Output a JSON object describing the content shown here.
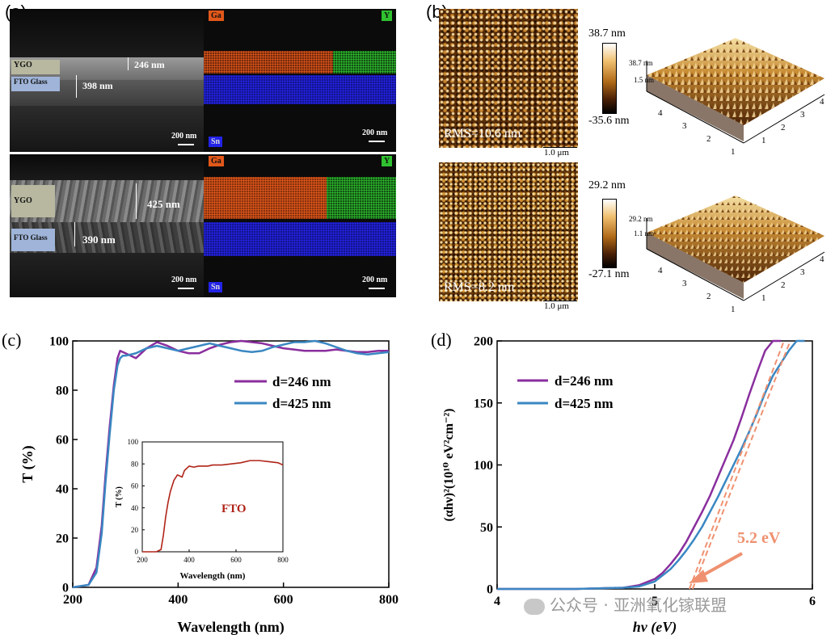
{
  "panel_a": {
    "label": "(a)",
    "top": {
      "ygo_label": "YGO",
      "fto_label": "FTO Glass",
      "ygo_thickness": "246 nm",
      "fto_thickness": "398 nm",
      "scale_sem": "200 nm",
      "scale_eds": "200 nm",
      "eds_ga": "Ga",
      "eds_y": "Y",
      "eds_sn": "Sn"
    },
    "bottom": {
      "ygo_label": "YGO",
      "fto_label": "FTO Glass",
      "ygo_thickness": "425 nm",
      "fto_thickness": "390 nm",
      "scale_sem": "200 nm",
      "scale_eds": "200 nm",
      "eds_ga": "Ga",
      "eds_y": "Y",
      "eds_sn": "Sn"
    },
    "colors": {
      "ga": "#e2581a",
      "y": "#2fc12f",
      "sn": "#2323e8",
      "ygo_tag": "#b8b8a0",
      "fto_tag": "#9fb4d8"
    }
  },
  "panel_b": {
    "label": "(b)",
    "top": {
      "rms": "RMS=10.6 nm",
      "scale": "1.0 μm",
      "cbar_max": "38.7 nm",
      "cbar_min": "-35.6 nm",
      "z_max": "38.7 nm",
      "z_mid": "1.5 nm",
      "x_ticks": [
        "1",
        "2",
        "3",
        "4"
      ],
      "y_ticks": [
        "1",
        "2",
        "3",
        "4"
      ]
    },
    "bottom": {
      "rms": "RMS=8.2 nm",
      "scale": "1.0 μm",
      "cbar_max": "29.2 nm",
      "cbar_min": "-27.1 nm",
      "z_max": "29.2 nm",
      "z_mid": "1.1 nm",
      "x_ticks": [
        "1",
        "2",
        "3",
        "4"
      ],
      "y_ticks": [
        "1",
        "2",
        "3",
        "4"
      ]
    }
  },
  "watermark": "公众号 · 亚洲氧化镓联盟",
  "chart_data": [
    {
      "id": "c",
      "type": "line",
      "panel_label": "(c)",
      "xlabel": "Wavelength (nm)",
      "ylabel": "T (%)",
      "xlim": [
        200,
        800
      ],
      "ylim": [
        0,
        100
      ],
      "x_ticks": [
        200,
        400,
        600,
        800
      ],
      "y_ticks": [
        0,
        20,
        40,
        60,
        80,
        100
      ],
      "legend_position": "right",
      "series": [
        {
          "name": "d=246 nm",
          "color": "#8a2e9e",
          "x": [
            200,
            230,
            245,
            255,
            262,
            270,
            278,
            285,
            290,
            300,
            320,
            340,
            360,
            380,
            400,
            420,
            440,
            460,
            480,
            500,
            520,
            540,
            560,
            580,
            600,
            620,
            640,
            660,
            680,
            700,
            720,
            740,
            760,
            780,
            800
          ],
          "y": [
            0,
            1,
            8,
            25,
            45,
            65,
            82,
            93,
            96,
            95,
            93,
            97,
            99.5,
            98,
            96,
            95,
            95,
            97,
            98.5,
            99.5,
            100,
            99.5,
            99,
            98,
            97,
            96.5,
            96,
            96,
            96,
            96.5,
            96,
            95.5,
            95.5,
            96,
            96
          ]
        },
        {
          "name": "d=425 nm",
          "color": "#3a87c2",
          "x": [
            200,
            230,
            245,
            255,
            262,
            270,
            278,
            285,
            290,
            295,
            300,
            320,
            340,
            360,
            380,
            400,
            420,
            440,
            460,
            480,
            500,
            520,
            540,
            560,
            580,
            600,
            620,
            640,
            660,
            680,
            700,
            720,
            740,
            760,
            780,
            800
          ],
          "y": [
            0,
            1,
            6,
            22,
            42,
            62,
            80,
            90,
            93,
            94,
            94,
            95,
            97,
            98,
            97,
            96,
            97,
            98,
            99,
            98,
            97,
            96,
            95.5,
            96,
            97.5,
            98.5,
            99.5,
            99.5,
            100,
            99,
            97.5,
            96,
            95,
            94.5,
            95,
            95.5
          ]
        }
      ],
      "inset": {
        "type": "line",
        "xlabel": "Wavelength (nm)",
        "ylabel": "T (%)",
        "xlim": [
          200,
          800
        ],
        "ylim": [
          0,
          100
        ],
        "x_ticks": [
          200,
          400,
          600,
          800
        ],
        "y_ticks": [
          0,
          20,
          40,
          60,
          80,
          100
        ],
        "annotation": "FTO",
        "series": [
          {
            "name": "FTO",
            "color": "#b02418",
            "x": [
              200,
              260,
              280,
              290,
              300,
              310,
              320,
              335,
              350,
              370,
              380,
              400,
              420,
              440,
              460,
              480,
              500,
              540,
              580,
              620,
              660,
              700,
              740,
              780,
              800
            ],
            "y": [
              0,
              0,
              2,
              15,
              32,
              45,
              55,
              65,
              70,
              68,
              74,
              78,
              77,
              78,
              78,
              78,
              79,
              79,
              80,
              81,
              83,
              83,
              82,
              81,
              79
            ]
          }
        ]
      }
    },
    {
      "id": "d",
      "type": "line",
      "panel_label": "(d)",
      "xlabel": "hν (eV)",
      "ylabel": "(αhν)²(10¹⁰ eV²cm⁻²)",
      "xlim": [
        4,
        6
      ],
      "ylim": [
        0,
        200
      ],
      "x_ticks": [
        4,
        5,
        6
      ],
      "y_ticks": [
        0,
        50,
        100,
        150,
        200
      ],
      "legend_position": "top-left",
      "annotation": "5.2 eV",
      "annotation_color": "#ef9170",
      "series": [
        {
          "name": "d=246 nm",
          "color": "#8a2e9e",
          "x": [
            4.0,
            4.5,
            4.8,
            4.9,
            5.0,
            5.05,
            5.1,
            5.15,
            5.2,
            5.25,
            5.3,
            5.35,
            5.4,
            5.45,
            5.5,
            5.55,
            5.6,
            5.65,
            5.7,
            5.75,
            5.8
          ],
          "y": [
            0,
            0,
            1,
            3,
            8,
            13,
            20,
            28,
            38,
            50,
            62,
            75,
            90,
            105,
            120,
            138,
            157,
            175,
            192,
            200,
            200
          ]
        },
        {
          "name": "d=425 nm",
          "color": "#3a87c2",
          "x": [
            4.0,
            4.5,
            4.8,
            4.9,
            5.0,
            5.05,
            5.1,
            5.15,
            5.2,
            5.25,
            5.3,
            5.35,
            5.4,
            5.45,
            5.5,
            5.55,
            5.6,
            5.65,
            5.7,
            5.75,
            5.8,
            5.85,
            5.9,
            5.95
          ],
          "y": [
            0,
            0,
            1,
            2,
            6,
            11,
            16,
            23,
            31,
            40,
            50,
            62,
            74,
            87,
            100,
            113,
            127,
            142,
            158,
            172,
            182,
            192,
            200,
            200
          ]
        }
      ],
      "fit_lines": [
        {
          "color": "#ef9170",
          "x": [
            5.22,
            5.82
          ],
          "y": [
            0,
            200
          ]
        },
        {
          "color": "#ef9170",
          "x": [
            5.24,
            5.86
          ],
          "y": [
            0,
            200
          ]
        }
      ]
    }
  ]
}
